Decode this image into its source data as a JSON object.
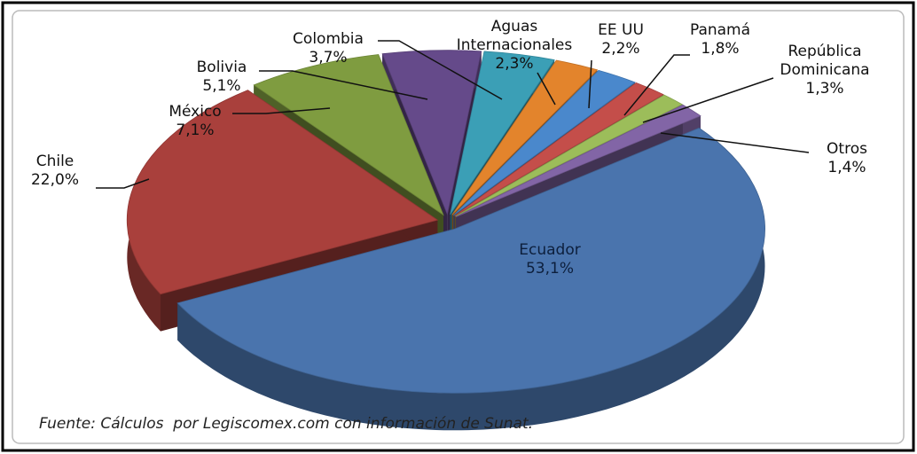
{
  "chart_data": {
    "type": "pie",
    "categories": [
      "Ecuador",
      "Chile",
      "México",
      "Bolivia",
      "Colombia",
      "Aguas Internacionales",
      "EE UU",
      "Panamá",
      "República Dominicana",
      "Otros"
    ],
    "values": [
      53.1,
      22.0,
      7.1,
      5.1,
      3.7,
      2.3,
      2.2,
      1.8,
      1.3,
      1.4
    ],
    "value_labels": [
      "53,1%",
      "22,0%",
      "7,1%",
      "5,1%",
      "3,7%",
      "2,3%",
      "2,2%",
      "1,8%",
      "1,3%",
      "1,4%"
    ],
    "colors": [
      "#4a74ad",
      "#a9403c",
      "#7f9c40",
      "#654a8a",
      "#3b9fb6",
      "#e3842c",
      "#4a88cc",
      "#c44e4a",
      "#9cbd5a",
      "#8265a6"
    ],
    "note": "Fuente: Cálculos  por Legiscomex.com con información de Sunat."
  }
}
